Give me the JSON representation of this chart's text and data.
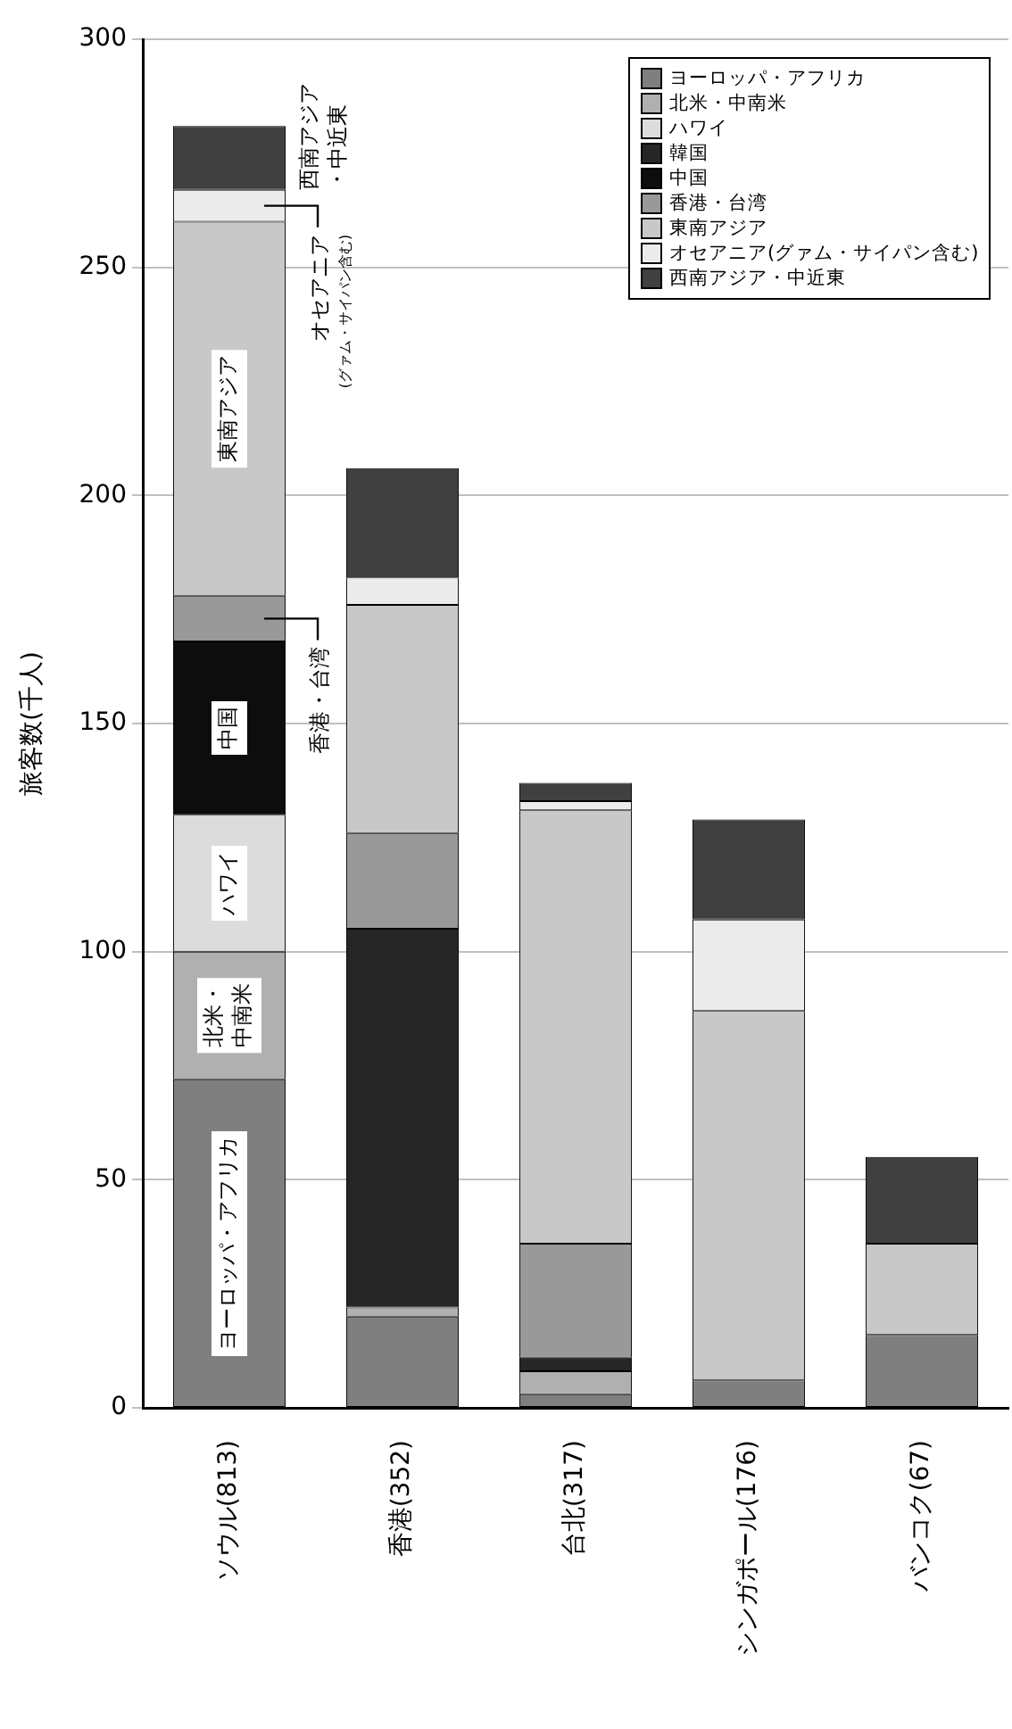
{
  "chart_data": {
    "type": "bar",
    "stacked": true,
    "ylabel": "旅客数(千人)",
    "categories": [
      "ソウル(813)",
      "香港(352)",
      "台北(317)",
      "シンガポール(176)",
      "バンコク(67)"
    ],
    "series": [
      {
        "name": "ヨーロッパ・アフリカ",
        "color": "#7f7f7f",
        "values": [
          72,
          20,
          3,
          6,
          16
        ]
      },
      {
        "name": "北米・中南米",
        "color": "#b0b0b0",
        "values": [
          28,
          2,
          5,
          0,
          0
        ]
      },
      {
        "name": "ハワイ",
        "color": "#dcdcdc",
        "values": [
          30,
          0,
          0,
          0,
          0
        ]
      },
      {
        "name": "韓国",
        "color": "#262626",
        "values": [
          0,
          83,
          3,
          0,
          0
        ]
      },
      {
        "name": "中国",
        "color": "#0d0d0d",
        "values": [
          38,
          0,
          0,
          0,
          0
        ]
      },
      {
        "name": "香港・台湾",
        "color": "#999999",
        "values": [
          10,
          21,
          25,
          0,
          0
        ]
      },
      {
        "name": "東南アジア",
        "color": "#c8c8c8",
        "values": [
          82,
          50,
          95,
          81,
          20
        ]
      },
      {
        "name": "オセアニア(グァム・サイパン含む)",
        "color": "#ebebeb",
        "values": [
          7,
          6,
          2,
          20,
          0
        ]
      },
      {
        "name": "西南アジア・中近東",
        "color": "#404040",
        "values": [
          14,
          24,
          4,
          22,
          19
        ]
      }
    ],
    "ylim": [
      0,
      300
    ],
    "yticks": [
      0,
      50,
      100,
      150,
      200,
      250,
      300
    ],
    "grid": "y",
    "legend": "top right"
  }
}
